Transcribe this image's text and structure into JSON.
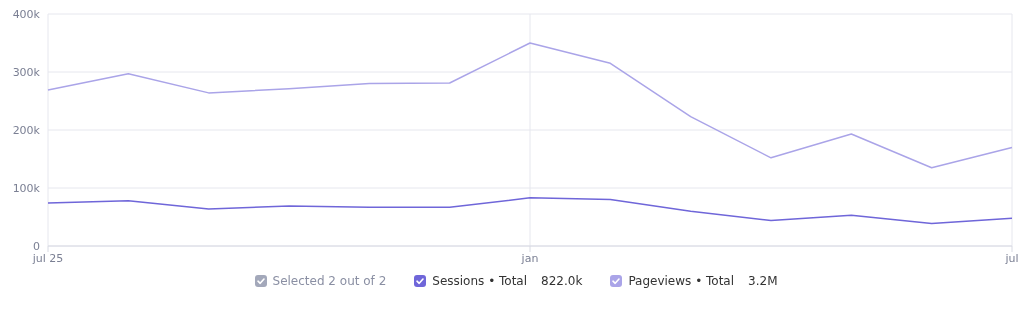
{
  "chart_data": {
    "type": "line",
    "categories": [
      "jul 25",
      null,
      null,
      null,
      null,
      null,
      "jan",
      null,
      null,
      null,
      null,
      null,
      "jul"
    ],
    "series": [
      {
        "name": "Sessions • Total",
        "color": "#6f66d9",
        "values": [
          74000,
          78000,
          64000,
          69000,
          67000,
          67000,
          83000,
          80000,
          60000,
          44000,
          53000,
          39000,
          48000
        ]
      },
      {
        "name": "Pageviews • Total",
        "color": "#aaa4e8",
        "values": [
          269000,
          297000,
          264000,
          271000,
          280000,
          281000,
          350000,
          315000,
          223000,
          152000,
          193000,
          135000,
          170000
        ]
      }
    ],
    "ylim": [
      0,
      400000
    ],
    "yticks": [
      {
        "value": 0,
        "label": "0"
      },
      {
        "value": 100000,
        "label": "100k"
      },
      {
        "value": 200000,
        "label": "200k"
      },
      {
        "value": 300000,
        "label": "300k"
      },
      {
        "value": 400000,
        "label": "400k"
      }
    ],
    "grid": true,
    "legend": "bottom",
    "marker": "none",
    "line_style": "solid",
    "annotations": [
      "Selected 2 out of 2",
      "822.0k",
      "3.2M"
    ]
  }
}
